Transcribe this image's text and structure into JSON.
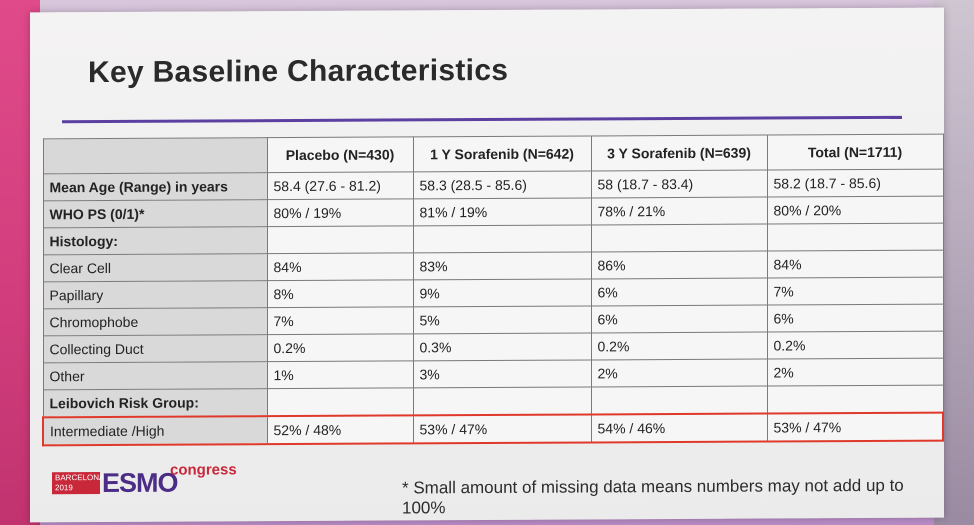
{
  "slide": {
    "title": "Key Baseline Characteristics",
    "footnote": "* Small amount of missing data means numbers may not add up to 100%"
  },
  "table": {
    "columns": [
      "",
      "Placebo (N=430)",
      "1 Y Sorafenib (N=642)",
      "3 Y Sorafenib (N=639)",
      "Total (N=1711)"
    ],
    "rows": [
      {
        "label": "Mean Age (Range) in years",
        "values": [
          "58.4 (27.6 - 81.2)",
          "58.3 (28.5 - 85.6)",
          "58 (18.7 - 83.4)",
          "58.2 (18.7 - 85.6)"
        ]
      },
      {
        "label": "WHO PS (0/1)*",
        "values": [
          "80% / 19%",
          "81% / 19%",
          "78% / 21%",
          "80% / 20%"
        ]
      },
      {
        "label": "Histology:",
        "values": [
          "",
          "",
          "",
          ""
        ]
      },
      {
        "label": "Clear Cell",
        "values": [
          "84%",
          "83%",
          "86%",
          "84%"
        ]
      },
      {
        "label": "Papillary",
        "values": [
          "8%",
          "9%",
          "6%",
          "7%"
        ]
      },
      {
        "label": "Chromophobe",
        "values": [
          "7%",
          "5%",
          "6%",
          "6%"
        ]
      },
      {
        "label": "Collecting Duct",
        "values": [
          "0.2%",
          "0.3%",
          "0.2%",
          "0.2%"
        ]
      },
      {
        "label": "Other",
        "values": [
          "1%",
          "3%",
          "2%",
          "2%"
        ]
      },
      {
        "label": "Leibovich Risk Group:",
        "values": [
          "",
          "",
          "",
          ""
        ]
      },
      {
        "label": "Intermediate /High",
        "values": [
          "52% / 48%",
          "53% / 47%",
          "54% / 46%",
          "53% / 47%"
        ]
      }
    ]
  },
  "logo": {
    "city": "BARCELONA",
    "year": "2019",
    "brand": "ESMO",
    "suffix": "congress"
  },
  "colors": {
    "accent_rule": "#5b3fa1",
    "highlight_border": "#e0392b",
    "brand_purple": "#4b2d86",
    "brand_red": "#c8283a"
  }
}
